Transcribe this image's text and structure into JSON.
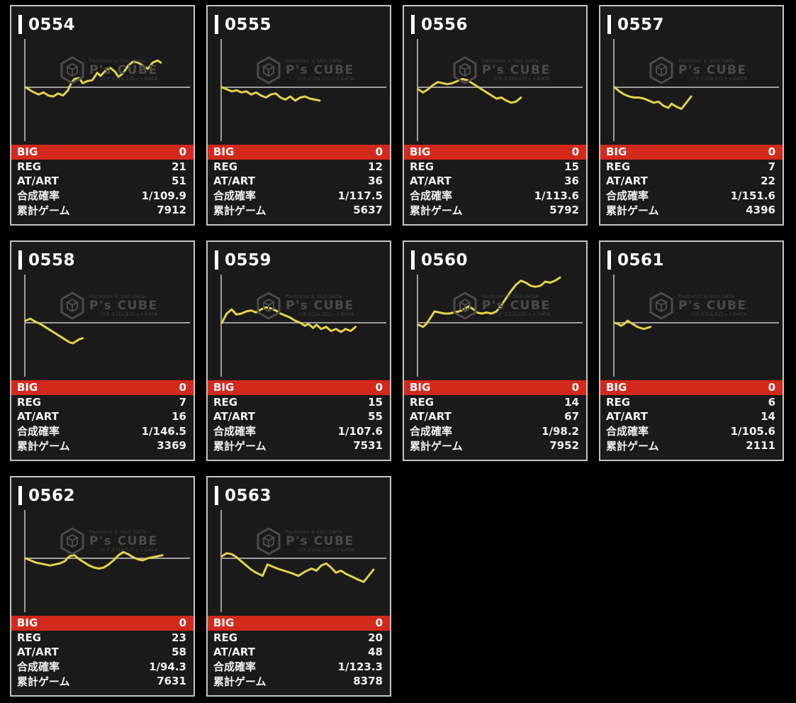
{
  "labels": {
    "big": "BIG",
    "reg": "REG",
    "at_art": "AT/ART",
    "rate": "合成確率",
    "total": "累計ゲーム"
  },
  "watermark": {
    "brand": "P's CUBE",
    "top_text": "Pachislot & Slot DATA",
    "bottom_text": "パチスロ&スロットDATA"
  },
  "colors": {
    "background": "#000000",
    "card_background": "#1a1a1a",
    "card_border": "#c4c4c4",
    "accent_red": "#d3291d",
    "axis_gray": "#9e9e9e",
    "line_yellow": "#e3d24a",
    "text": "#f2f2f2",
    "watermark_gray": "#4b4b4b"
  },
  "machines": [
    {
      "id": "0554",
      "big": "0",
      "reg": "21",
      "at_art": "51",
      "rate": "1/109.9",
      "total": "7912",
      "chart": {
        "points": [
          [
            0,
            0
          ],
          [
            4,
            -4
          ],
          [
            8,
            -7
          ],
          [
            11,
            -5
          ],
          [
            14,
            -8
          ],
          [
            17,
            -9
          ],
          [
            20,
            -6
          ],
          [
            23,
            -8
          ],
          [
            26,
            -3
          ],
          [
            28,
            4
          ],
          [
            30,
            8
          ],
          [
            33,
            9
          ],
          [
            35,
            4
          ],
          [
            38,
            6
          ],
          [
            41,
            7
          ],
          [
            44,
            14
          ],
          [
            46,
            11
          ],
          [
            49,
            16
          ],
          [
            52,
            19
          ],
          [
            55,
            15
          ],
          [
            57,
            10
          ],
          [
            60,
            14
          ],
          [
            63,
            21
          ],
          [
            66,
            25
          ],
          [
            69,
            24
          ],
          [
            72,
            21
          ],
          [
            75,
            18
          ],
          [
            78,
            24
          ],
          [
            81,
            26
          ],
          [
            83,
            24
          ]
        ]
      }
    },
    {
      "id": "0555",
      "big": "0",
      "reg": "12",
      "at_art": "36",
      "rate": "1/117.5",
      "total": "5637",
      "chart": {
        "points": [
          [
            0,
            0
          ],
          [
            3,
            -2
          ],
          [
            6,
            -4
          ],
          [
            9,
            -3
          ],
          [
            12,
            -5
          ],
          [
            15,
            -4
          ],
          [
            18,
            -7
          ],
          [
            21,
            -5
          ],
          [
            24,
            -8
          ],
          [
            27,
            -10
          ],
          [
            30,
            -7
          ],
          [
            33,
            -6
          ],
          [
            36,
            -10
          ],
          [
            39,
            -12
          ],
          [
            42,
            -9
          ],
          [
            45,
            -13
          ],
          [
            48,
            -10
          ],
          [
            51,
            -9
          ],
          [
            54,
            -11
          ],
          [
            57,
            -12
          ],
          [
            60,
            -13
          ]
        ]
      }
    },
    {
      "id": "0556",
      "big": "0",
      "reg": "15",
      "at_art": "36",
      "rate": "1/113.6",
      "total": "5792",
      "chart": {
        "points": [
          [
            0,
            -2
          ],
          [
            3,
            -5
          ],
          [
            6,
            -2
          ],
          [
            9,
            2
          ],
          [
            12,
            5
          ],
          [
            15,
            4
          ],
          [
            18,
            3
          ],
          [
            21,
            4
          ],
          [
            24,
            6
          ],
          [
            27,
            8
          ],
          [
            30,
            7
          ],
          [
            33,
            4
          ],
          [
            36,
            1
          ],
          [
            39,
            -2
          ],
          [
            42,
            -5
          ],
          [
            45,
            -8
          ],
          [
            48,
            -11
          ],
          [
            51,
            -10
          ],
          [
            54,
            -13
          ],
          [
            57,
            -15
          ],
          [
            60,
            -14
          ],
          [
            63,
            -10
          ]
        ]
      }
    },
    {
      "id": "0557",
      "big": "0",
      "reg": "7",
      "at_art": "22",
      "rate": "1/151.6",
      "total": "4396",
      "chart": {
        "points": [
          [
            0,
            0
          ],
          [
            3,
            -4
          ],
          [
            6,
            -7
          ],
          [
            9,
            -9
          ],
          [
            12,
            -10
          ],
          [
            15,
            -10
          ],
          [
            18,
            -11
          ],
          [
            21,
            -13
          ],
          [
            24,
            -15
          ],
          [
            27,
            -14
          ],
          [
            30,
            -18
          ],
          [
            33,
            -20
          ],
          [
            35,
            -16
          ],
          [
            38,
            -19
          ],
          [
            41,
            -21
          ],
          [
            44,
            -15
          ],
          [
            47,
            -9
          ]
        ]
      }
    },
    {
      "id": "0558",
      "big": "0",
      "reg": "7",
      "at_art": "16",
      "rate": "1/146.5",
      "total": "3369",
      "chart": {
        "points": [
          [
            0,
            2
          ],
          [
            3,
            4
          ],
          [
            6,
            1
          ],
          [
            9,
            -1
          ],
          [
            12,
            -4
          ],
          [
            15,
            -7
          ],
          [
            18,
            -10
          ],
          [
            21,
            -13
          ],
          [
            24,
            -16
          ],
          [
            27,
            -19
          ],
          [
            29,
            -20
          ],
          [
            31,
            -18
          ],
          [
            33,
            -16
          ],
          [
            35,
            -15
          ]
        ]
      }
    },
    {
      "id": "0559",
      "big": "0",
      "reg": "15",
      "at_art": "55",
      "rate": "1/107.6",
      "total": "7531",
      "chart": {
        "points": [
          [
            0,
            0
          ],
          [
            3,
            9
          ],
          [
            6,
            13
          ],
          [
            9,
            8
          ],
          [
            12,
            9
          ],
          [
            15,
            11
          ],
          [
            18,
            12
          ],
          [
            21,
            10
          ],
          [
            24,
            13
          ],
          [
            27,
            15
          ],
          [
            30,
            14
          ],
          [
            33,
            12
          ],
          [
            36,
            9
          ],
          [
            39,
            7
          ],
          [
            42,
            5
          ],
          [
            45,
            2
          ],
          [
            48,
            0
          ],
          [
            51,
            -3
          ],
          [
            53,
            -1
          ],
          [
            56,
            -5
          ],
          [
            58,
            -2
          ],
          [
            61,
            -6
          ],
          [
            64,
            -4
          ],
          [
            67,
            -8
          ],
          [
            70,
            -6
          ],
          [
            73,
            -9
          ],
          [
            76,
            -6
          ],
          [
            79,
            -8
          ],
          [
            82,
            -4
          ]
        ]
      }
    },
    {
      "id": "0560",
      "big": "0",
      "reg": "14",
      "at_art": "67",
      "rate": "1/98.2",
      "total": "7952",
      "chart": {
        "points": [
          [
            0,
            -2
          ],
          [
            3,
            -4
          ],
          [
            5,
            -1
          ],
          [
            8,
            6
          ],
          [
            10,
            11
          ],
          [
            13,
            10
          ],
          [
            16,
            9
          ],
          [
            19,
            9
          ],
          [
            22,
            10
          ],
          [
            25,
            11
          ],
          [
            28,
            13
          ],
          [
            31,
            16
          ],
          [
            34,
            13
          ],
          [
            36,
            10
          ],
          [
            39,
            9
          ],
          [
            42,
            10
          ],
          [
            45,
            9
          ],
          [
            48,
            11
          ],
          [
            51,
            17
          ],
          [
            54,
            24
          ],
          [
            57,
            31
          ],
          [
            60,
            37
          ],
          [
            63,
            41
          ],
          [
            66,
            39
          ],
          [
            69,
            36
          ],
          [
            72,
            35
          ],
          [
            75,
            36
          ],
          [
            78,
            40
          ],
          [
            81,
            39
          ],
          [
            84,
            41
          ],
          [
            87,
            44
          ]
        ]
      }
    },
    {
      "id": "0561",
      "big": "0",
      "reg": "6",
      "at_art": "14",
      "rate": "1/105.6",
      "total": "2111",
      "chart": {
        "points": [
          [
            0,
            0
          ],
          [
            2,
            -1
          ],
          [
            4,
            -3
          ],
          [
            6,
            -1
          ],
          [
            8,
            2
          ],
          [
            10,
            0
          ],
          [
            12,
            -2
          ],
          [
            14,
            -4
          ],
          [
            16,
            -5
          ],
          [
            18,
            -6
          ],
          [
            20,
            -5
          ],
          [
            22,
            -4
          ]
        ]
      }
    },
    {
      "id": "0562",
      "big": "0",
      "reg": "23",
      "at_art": "58",
      "rate": "1/94.3",
      "total": "7631",
      "chart": {
        "points": [
          [
            0,
            0
          ],
          [
            3,
            -2
          ],
          [
            6,
            -4
          ],
          [
            9,
            -5
          ],
          [
            12,
            -6
          ],
          [
            15,
            -7
          ],
          [
            18,
            -6
          ],
          [
            21,
            -5
          ],
          [
            24,
            -3
          ],
          [
            27,
            2
          ],
          [
            30,
            3
          ],
          [
            33,
            -1
          ],
          [
            36,
            -4
          ],
          [
            39,
            -7
          ],
          [
            42,
            -9
          ],
          [
            45,
            -10
          ],
          [
            48,
            -9
          ],
          [
            51,
            -6
          ],
          [
            54,
            -2
          ],
          [
            57,
            3
          ],
          [
            60,
            6
          ],
          [
            63,
            4
          ],
          [
            66,
            1
          ],
          [
            69,
            -1
          ],
          [
            72,
            -2
          ],
          [
            75,
            0
          ],
          [
            78,
            1
          ],
          [
            81,
            2
          ],
          [
            84,
            3
          ]
        ]
      }
    },
    {
      "id": "0563",
      "big": "0",
      "reg": "20",
      "at_art": "48",
      "rate": "1/123.3",
      "total": "8378",
      "chart": {
        "points": [
          [
            0,
            2
          ],
          [
            3,
            5
          ],
          [
            6,
            4
          ],
          [
            9,
            1
          ],
          [
            12,
            -3
          ],
          [
            15,
            -7
          ],
          [
            18,
            -11
          ],
          [
            21,
            -14
          ],
          [
            25,
            -17
          ],
          [
            28,
            -6
          ],
          [
            31,
            -8
          ],
          [
            34,
            -10
          ],
          [
            38,
            -12
          ],
          [
            42,
            -14
          ],
          [
            47,
            -17
          ],
          [
            51,
            -13
          ],
          [
            55,
            -10
          ],
          [
            58,
            -12
          ],
          [
            61,
            -7
          ],
          [
            64,
            -5
          ],
          [
            67,
            -9
          ],
          [
            70,
            -14
          ],
          [
            73,
            -12
          ],
          [
            76,
            -15
          ],
          [
            80,
            -18
          ],
          [
            84,
            -21
          ],
          [
            87,
            -23
          ],
          [
            90,
            -17
          ],
          [
            93,
            -11
          ]
        ]
      }
    }
  ]
}
